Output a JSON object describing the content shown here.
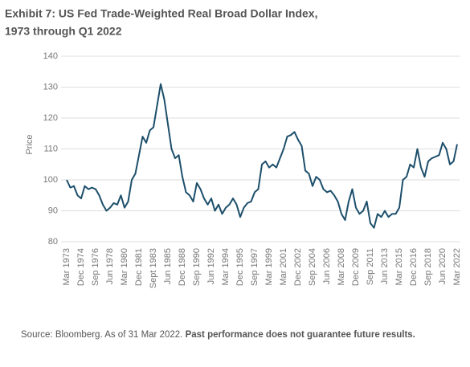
{
  "chart_data": {
    "type": "line",
    "title": "Exhibit 7: US Fed Trade-Weighted Real Broad Dollar Index,",
    "subtitle": "1973 through Q1 2022",
    "y_label": "Price",
    "source": "Source: Bloomberg. As of 31 Mar 2022.",
    "disclaimer": "Past performance does not guarantee future results.",
    "color": "#1d4f6b",
    "grid": true,
    "ylim": [
      80,
      140
    ],
    "yticks": [
      80,
      90,
      100,
      110,
      120,
      130,
      140
    ],
    "categories": [
      "Mar 1973",
      null,
      null,
      null,
      "Dec 1974",
      null,
      null,
      null,
      "Sep 1976",
      null,
      null,
      null,
      "Jun 1978",
      null,
      null,
      null,
      "Mar 1980",
      null,
      null,
      null,
      "Dec 1981",
      null,
      null,
      null,
      "Sept 1983",
      null,
      null,
      null,
      "Jun 1985",
      null,
      null,
      null,
      "Dec 1988",
      null,
      null,
      null,
      "Sep 1990",
      null,
      null,
      null,
      "Jun 1992",
      null,
      null,
      null,
      "Mar 1994",
      null,
      null,
      null,
      "Dec 1995",
      null,
      null,
      null,
      "Sep 1997",
      null,
      null,
      null,
      "Mar 1999",
      null,
      null,
      null,
      "Mar 2001",
      null,
      null,
      null,
      "Dec 2002",
      null,
      null,
      null,
      "Sep 2004",
      null,
      null,
      null,
      "Jun 2006",
      null,
      null,
      null,
      "Mar 2008",
      null,
      null,
      null,
      "Dec 2009",
      null,
      null,
      null,
      "Sep 2011",
      null,
      null,
      null,
      "Jun 2013",
      null,
      null,
      null,
      "Mar 2015",
      null,
      null,
      null,
      "Dec 2016",
      null,
      null,
      null,
      "Sep 2018",
      null,
      null,
      null,
      "Jun 2020",
      null,
      null,
      null,
      "Mar 2022"
    ],
    "values": [
      100,
      97.5,
      98,
      95,
      94,
      98,
      97,
      97.5,
      97,
      95,
      92,
      90,
      91,
      92.5,
      92,
      95,
      91,
      93,
      100,
      102,
      108,
      114,
      112,
      116,
      117,
      124,
      131,
      126,
      118,
      110,
      107,
      108,
      101,
      96,
      95,
      93,
      99,
      97,
      94,
      92,
      94,
      90,
      92,
      89,
      91,
      92,
      94,
      92,
      88,
      91,
      92.5,
      93,
      96,
      97,
      105,
      106,
      104,
      105,
      104,
      107,
      110,
      114,
      114.5,
      115.5,
      113,
      111,
      103,
      102,
      98,
      101,
      100,
      97,
      96,
      96.5,
      95,
      93,
      89,
      87,
      93,
      97,
      91,
      89,
      90,
      93,
      86,
      84.5,
      89,
      88,
      90,
      88,
      89,
      89,
      91,
      100,
      101,
      105,
      104,
      110,
      104,
      101,
      106,
      107,
      107.5,
      108,
      112,
      110,
      105,
      106,
      111.5
    ]
  }
}
